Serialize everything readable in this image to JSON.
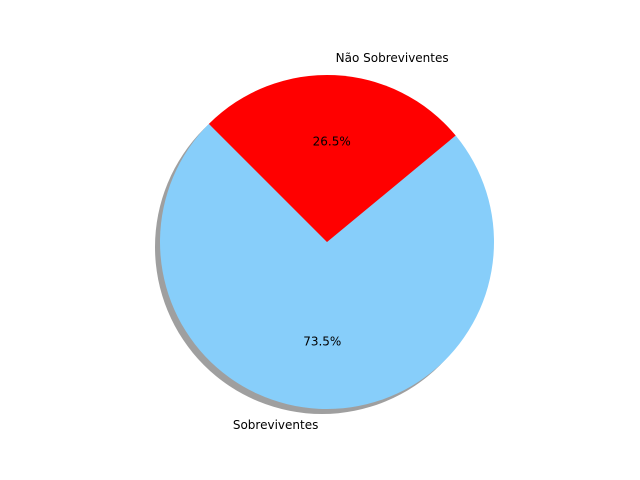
{
  "chart_data": {
    "type": "pie",
    "categories": [
      "Sobreviventes",
      "Não Sobreviventes"
    ],
    "values": [
      73.5,
      26.5
    ],
    "labels": [
      "73.5%",
      "26.5%"
    ],
    "colors": [
      "#87cefa",
      "#ff0000"
    ],
    "start_angle_deg": 135,
    "shadow": true
  }
}
